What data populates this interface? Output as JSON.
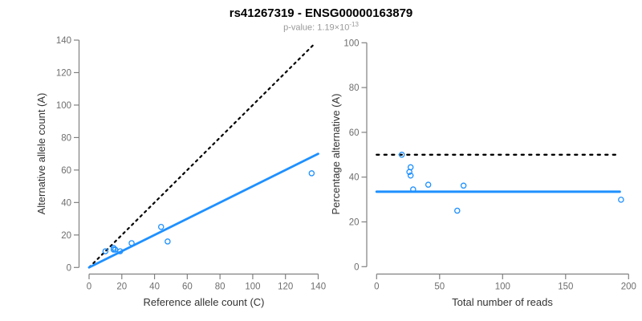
{
  "header": {
    "title": "rs41267319 - ENSG00000163879",
    "pvalue_prefix": "p-value: 1.19×10",
    "pvalue_exponent": "-13"
  },
  "style": {
    "point_color": "#1E90FF",
    "fit_line_color": "#1E90FF",
    "reference_line_color": "#000000",
    "axis_color": "#808080",
    "tick_text_color": "#6e6e6e"
  },
  "chart_data": [
    {
      "type": "scatter",
      "panel": "allele-counts",
      "xlabel": "Reference allele count (C)",
      "ylabel": "Alternative allele count (A)",
      "xlim": [
        0,
        140
      ],
      "ylim": [
        0,
        140
      ],
      "xticks": [
        0,
        20,
        40,
        60,
        80,
        100,
        120,
        140
      ],
      "yticks": [
        0,
        20,
        40,
        60,
        80,
        100,
        120,
        140
      ],
      "grid": false,
      "points": [
        [
          10,
          10
        ],
        [
          15,
          12
        ],
        [
          15,
          11
        ],
        [
          16,
          11
        ],
        [
          19,
          10
        ],
        [
          26,
          15
        ],
        [
          44,
          25
        ],
        [
          48,
          16
        ],
        [
          136,
          58
        ]
      ],
      "lines": [
        {
          "name": "identity-line",
          "x1": 0,
          "y1": 0,
          "x2": 137.5,
          "y2": 137.5,
          "color": "#000000",
          "dash": "2.5 5",
          "width": 2.2
        },
        {
          "name": "fit-line",
          "x1": 0,
          "y1": 0,
          "x2": 140,
          "y2": 70,
          "color": "#1E90FF",
          "dash": "",
          "width": 2.8
        }
      ]
    },
    {
      "type": "scatter",
      "panel": "percentage-vs-coverage",
      "xlabel": "Total number of reads",
      "ylabel": "Percentage alternative (A)",
      "xlim": [
        0,
        200
      ],
      "ylim": [
        0,
        100
      ],
      "xticks": [
        0,
        50,
        100,
        150,
        200
      ],
      "yticks": [
        0,
        20,
        40,
        60,
        80,
        100
      ],
      "grid": false,
      "points": [
        [
          20,
          50
        ],
        [
          27,
          44.4
        ],
        [
          26,
          42.3
        ],
        [
          27,
          40.7
        ],
        [
          29,
          34.5
        ],
        [
          41,
          36.6
        ],
        [
          69,
          36.2
        ],
        [
          64,
          25
        ],
        [
          194,
          29.9
        ]
      ],
      "lines": [
        {
          "name": "expected-50pct-line",
          "x1": 0,
          "y1": 50,
          "x2": 190,
          "y2": 50,
          "color": "#000000",
          "dash": "3 6.5",
          "width": 2.4
        },
        {
          "name": "fit-line",
          "x1": 0,
          "y1": 33.5,
          "x2": 193,
          "y2": 33.5,
          "color": "#1E90FF",
          "dash": "",
          "width": 3
        }
      ]
    }
  ]
}
